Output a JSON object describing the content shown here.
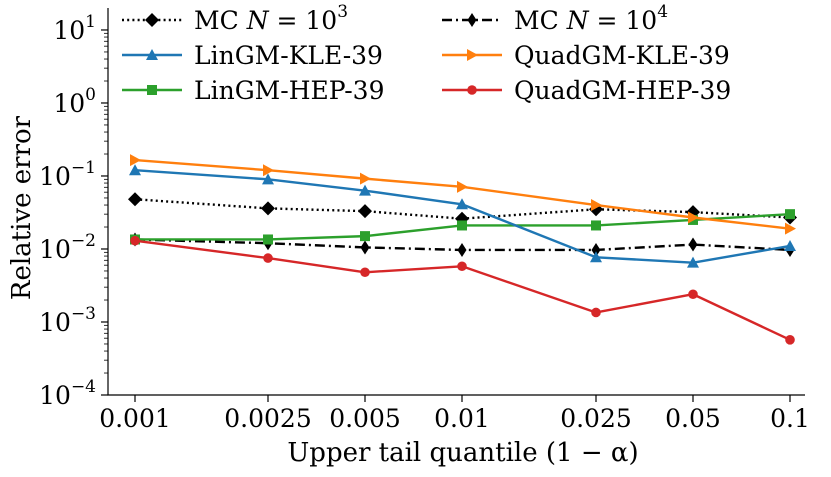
{
  "chart_data": {
    "type": "line",
    "title": "",
    "xlabel": "Upper tail quantile (1 − α)",
    "ylabel": "Relative error",
    "yscale": "log",
    "ylim": [
      0.0001,
      20
    ],
    "categories": [
      "0.001",
      "0.0025",
      "0.005",
      "0.01",
      "0.025",
      "0.05",
      "0.1"
    ],
    "y_ticks": [
      {
        "base": "10",
        "exp": "−4"
      },
      {
        "base": "10",
        "exp": "−3"
      },
      {
        "base": "10",
        "exp": "−2"
      },
      {
        "base": "10",
        "exp": "−1"
      },
      {
        "base": "10",
        "exp": "0"
      },
      {
        "base": "10",
        "exp": "1"
      }
    ],
    "legend_position": "top",
    "series": [
      {
        "name": "MC N = 10^3",
        "label_text": "MC ",
        "label_var": "N",
        "label_eq": " = 10",
        "label_sup": "3",
        "color": "#000000",
        "line_style": "dotted",
        "marker": "diamond",
        "values": [
          0.048,
          0.036,
          0.033,
          0.026,
          0.035,
          0.032,
          0.027
        ]
      },
      {
        "name": "MC N = 10^4",
        "label_text": "MC ",
        "label_var": "N",
        "label_eq": " = 10",
        "label_sup": "4",
        "color": "#000000",
        "line_style": "dashdot",
        "marker": "thin_diamond",
        "values": [
          0.0135,
          0.012,
          0.0105,
          0.0097,
          0.0097,
          0.0115,
          0.0097
        ]
      },
      {
        "name": "LinGM-KLE-39",
        "label_text": "LinGM-KLE-39",
        "color": "#1f77b4",
        "line_style": "solid",
        "marker": "triangle",
        "values": [
          0.12,
          0.09,
          0.063,
          0.041,
          0.0077,
          0.0065,
          0.011
        ]
      },
      {
        "name": "QuadGM-KLE-39",
        "label_text": "QuadGM-KLE-39",
        "color": "#ff7f0e",
        "line_style": "solid",
        "marker": "triangle_right",
        "values": [
          0.165,
          0.12,
          0.092,
          0.071,
          0.04,
          0.027,
          0.019
        ]
      },
      {
        "name": "LinGM-HEP-39",
        "label_text": "LinGM-HEP-39",
        "color": "#2ca02c",
        "line_style": "solid",
        "marker": "square",
        "values": [
          0.0135,
          0.0135,
          0.015,
          0.021,
          0.021,
          0.025,
          0.03
        ]
      },
      {
        "name": "QuadGM-HEP-39",
        "label_text": "QuadGM-HEP-39",
        "color": "#d62728",
        "line_style": "solid",
        "marker": "circle",
        "values": [
          0.013,
          0.0075,
          0.0048,
          0.0058,
          0.00135,
          0.0024,
          0.00057
        ]
      }
    ]
  }
}
